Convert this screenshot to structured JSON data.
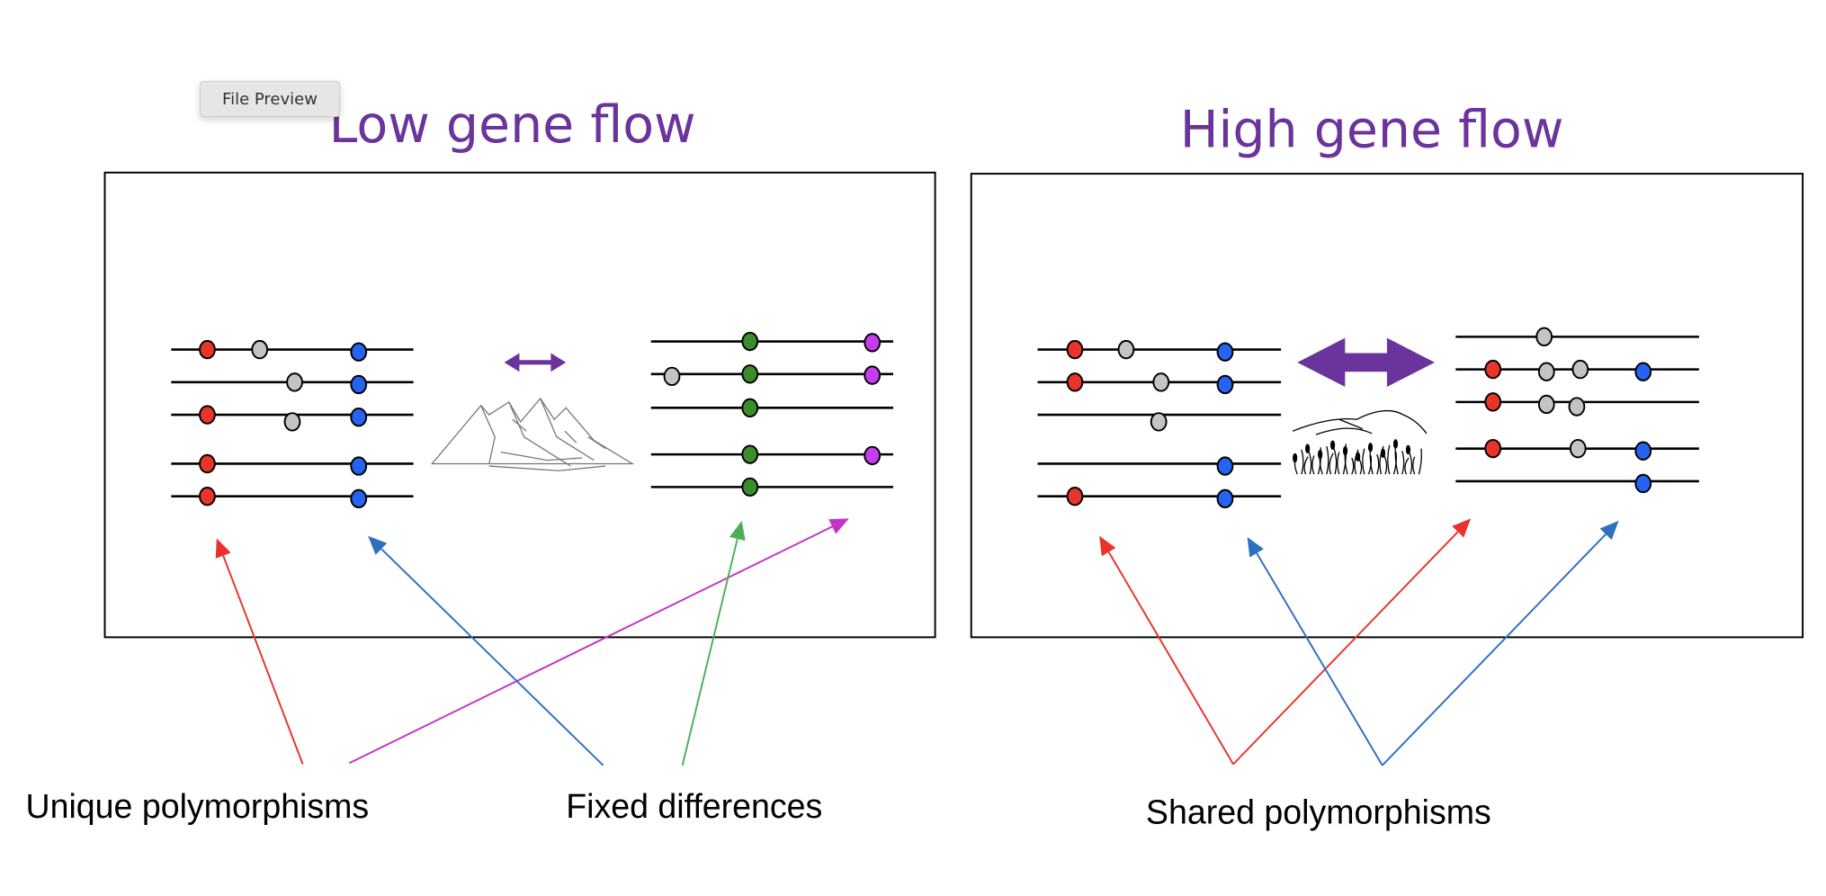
{
  "tooltip": "File Preview",
  "panels": {
    "low": {
      "title": "Low gene flow",
      "barrier_icon": "mountains-icon",
      "population_a": [
        [
          "red",
          "gray",
          "blue"
        ],
        [
          "gray",
          "blue"
        ],
        [
          "red",
          "gray",
          "blue"
        ],
        [
          "red",
          "blue"
        ],
        [
          "red",
          "blue"
        ]
      ],
      "population_b": [
        [
          "green",
          "purple"
        ],
        [
          "gray",
          "green",
          "purple"
        ],
        [
          "green"
        ],
        [
          "green",
          "purple"
        ],
        [
          "green"
        ]
      ]
    },
    "high": {
      "title": "High gene flow",
      "barrier_icon": "grassland-icon",
      "population_a": [
        [
          "red",
          "gray",
          "blue"
        ],
        [
          "red",
          "gray",
          "blue"
        ],
        [
          "gray"
        ],
        [
          "blue"
        ],
        [
          "red",
          "blue"
        ]
      ],
      "population_b": [
        [
          "gray"
        ],
        [
          "red",
          "gray",
          "gray",
          "blue"
        ],
        [
          "red",
          "gray",
          "gray"
        ],
        [
          "red",
          "gray",
          "blue"
        ],
        [
          "blue"
        ]
      ]
    }
  },
  "labels": {
    "unique": "Unique polymorphisms",
    "fixed": "Fixed differences",
    "shared": "Shared polymorphisms"
  },
  "colors": {
    "title": "#6b349c",
    "red": "#e8342a",
    "blue": "#2563f0",
    "green": "#3a8d2a",
    "purple": "#c43cf0",
    "gray": "#c4c4c4",
    "arrow_red": "#e8332a",
    "arrow_blue": "#2f6fc0",
    "arrow_magenta": "#c532c8",
    "arrow_green": "#4caf5a",
    "flow_arrow": "#6b349c"
  }
}
